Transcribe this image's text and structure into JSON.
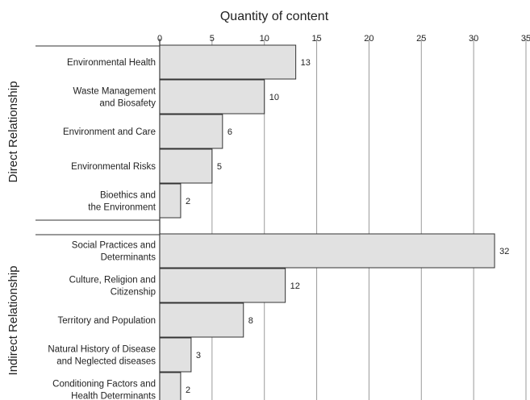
{
  "chart_data": {
    "type": "bar",
    "orientation": "horizontal",
    "xlabel": "Quantity of content",
    "xlim": [
      0,
      35
    ],
    "xticks": [
      0,
      5,
      10,
      15,
      20,
      25,
      30,
      35
    ],
    "grid": "vertical",
    "groups": [
      {
        "name": "Direct Relationship",
        "categories": [
          [
            "Environmental Health"
          ],
          [
            "Waste Management",
            "and Biosafety"
          ],
          [
            "Environment and Care"
          ],
          [
            "Environmental Risks"
          ],
          [
            "Bioethics and",
            "the Environment"
          ]
        ],
        "values": [
          13,
          10,
          6,
          5,
          2
        ]
      },
      {
        "name": "Indirect Relationship",
        "categories": [
          [
            "Social Practices and",
            "Determinants"
          ],
          [
            "Culture, Religion and",
            "Citizenship"
          ],
          [
            "Territory and Population"
          ],
          [
            "Natural History of  Disease",
            "and Neglected diseases"
          ],
          [
            "Conditioning Factors and",
            "Health Determinants"
          ]
        ],
        "values": [
          32,
          12,
          8,
          3,
          2
        ]
      }
    ],
    "colors": {
      "bar_fill": "#e1e1e1",
      "bar_stroke": "#333333",
      "grid": "#9a9a9a"
    }
  }
}
